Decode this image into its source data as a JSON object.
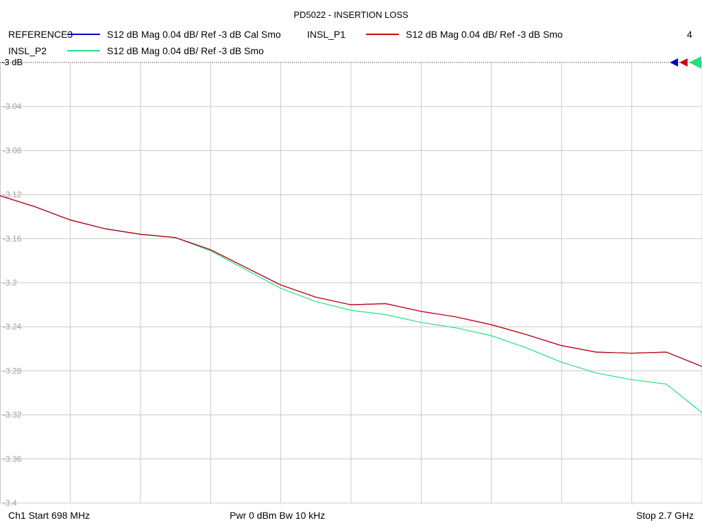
{
  "chart_data": {
    "type": "line",
    "title": "PD5022 - INSERTION LOSS",
    "channel_number": "4",
    "reference_label": "-3 dB",
    "y_ticks": [
      "-3.04",
      "-3.08",
      "-3.12",
      "-3.16",
      "-3.2",
      "-3.24",
      "-3.28",
      "-3.32",
      "-3.36",
      "-3.4"
    ],
    "ylim": [
      -3.4,
      -3.0
    ],
    "xlim": [
      698,
      2700
    ],
    "x_unit": "MHz",
    "grid": true,
    "series": [
      {
        "name": "REFERENCE3",
        "description": "S12  dB Mag  0.04 dB/ Ref -3 dB  Cal Smo",
        "color": "#0000c8",
        "x": [
          698,
          798,
          898,
          998,
          1098,
          1198,
          1298,
          1398,
          1498,
          1598,
          1698,
          1798,
          1898,
          1998,
          2098,
          2198,
          2298,
          2398,
          2498,
          2598,
          2700
        ],
        "y": [
          -3.121,
          -3.131,
          -3.143,
          -3.151,
          -3.156,
          -3.159,
          -3.17,
          -3.186,
          -3.202,
          -3.213,
          -3.22,
          -3.219,
          -3.226,
          -3.231,
          -3.238,
          -3.247,
          -3.257,
          -3.263,
          -3.264,
          -3.263,
          -3.276
        ]
      },
      {
        "name": "INSL_P1",
        "description": "S12  dB Mag  0.04 dB/ Ref -3 dB  Smo",
        "color": "#d00000",
        "x": [
          698,
          798,
          898,
          998,
          1098,
          1198,
          1298,
          1398,
          1498,
          1598,
          1698,
          1798,
          1898,
          1998,
          2098,
          2198,
          2298,
          2398,
          2498,
          2598,
          2700
        ],
        "y": [
          -3.121,
          -3.131,
          -3.143,
          -3.151,
          -3.156,
          -3.159,
          -3.17,
          -3.186,
          -3.202,
          -3.213,
          -3.22,
          -3.219,
          -3.226,
          -3.231,
          -3.238,
          -3.247,
          -3.257,
          -3.263,
          -3.264,
          -3.263,
          -3.276
        ]
      },
      {
        "name": "INSL_P2",
        "description": "S12  dB Mag  0.04 dB/ Ref -3 dB  Smo",
        "color": "#20e080",
        "x": [
          698,
          798,
          898,
          998,
          1098,
          1198,
          1298,
          1398,
          1498,
          1598,
          1698,
          1798,
          1898,
          1998,
          2098,
          2198,
          2298,
          2398,
          2498,
          2598,
          2700
        ],
        "y": [
          -3.121,
          -3.131,
          -3.143,
          -3.151,
          -3.156,
          -3.159,
          -3.171,
          -3.188,
          -3.205,
          -3.217,
          -3.225,
          -3.229,
          -3.236,
          -3.241,
          -3.248,
          -3.259,
          -3.272,
          -3.282,
          -3.288,
          -3.292,
          -3.318
        ]
      }
    ]
  },
  "footer": {
    "start": "Ch1  Start  698 MHz",
    "power": "Pwr  0 dBm  Bw  10 kHz",
    "stop": "Stop  2.7 GHz"
  }
}
